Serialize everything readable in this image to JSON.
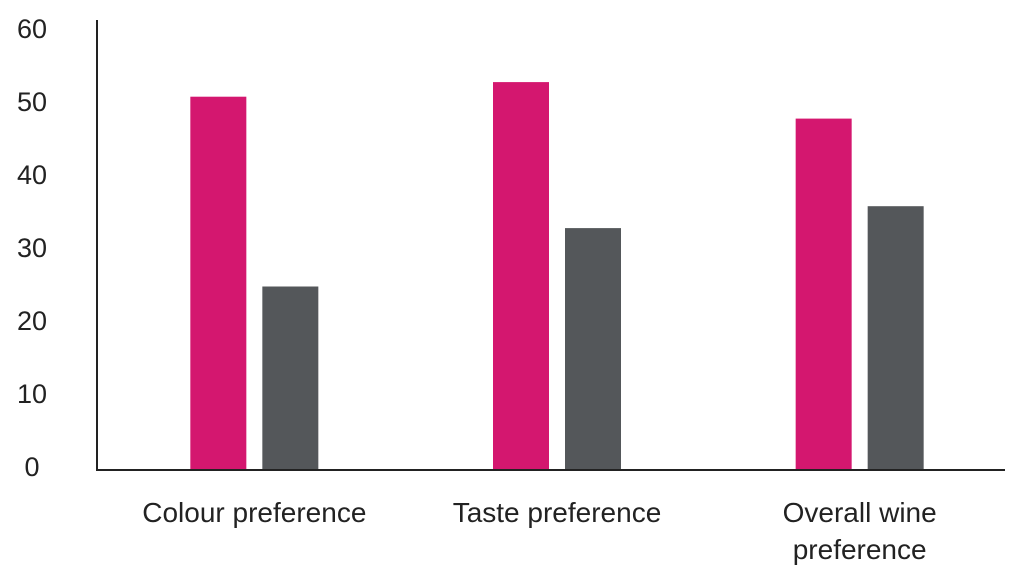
{
  "chart_data": {
    "type": "bar",
    "categories": [
      "Colour preference",
      "Taste preference",
      "Overall wine preference"
    ],
    "series": [
      {
        "color": "#d4176f",
        "values": [
          51,
          53,
          48
        ]
      },
      {
        "color": "#54575a",
        "values": [
          25,
          33,
          36
        ]
      }
    ],
    "ylim": [
      0,
      60
    ],
    "yticks": [
      0,
      10,
      20,
      30,
      40,
      50,
      60
    ],
    "grid": false
  }
}
